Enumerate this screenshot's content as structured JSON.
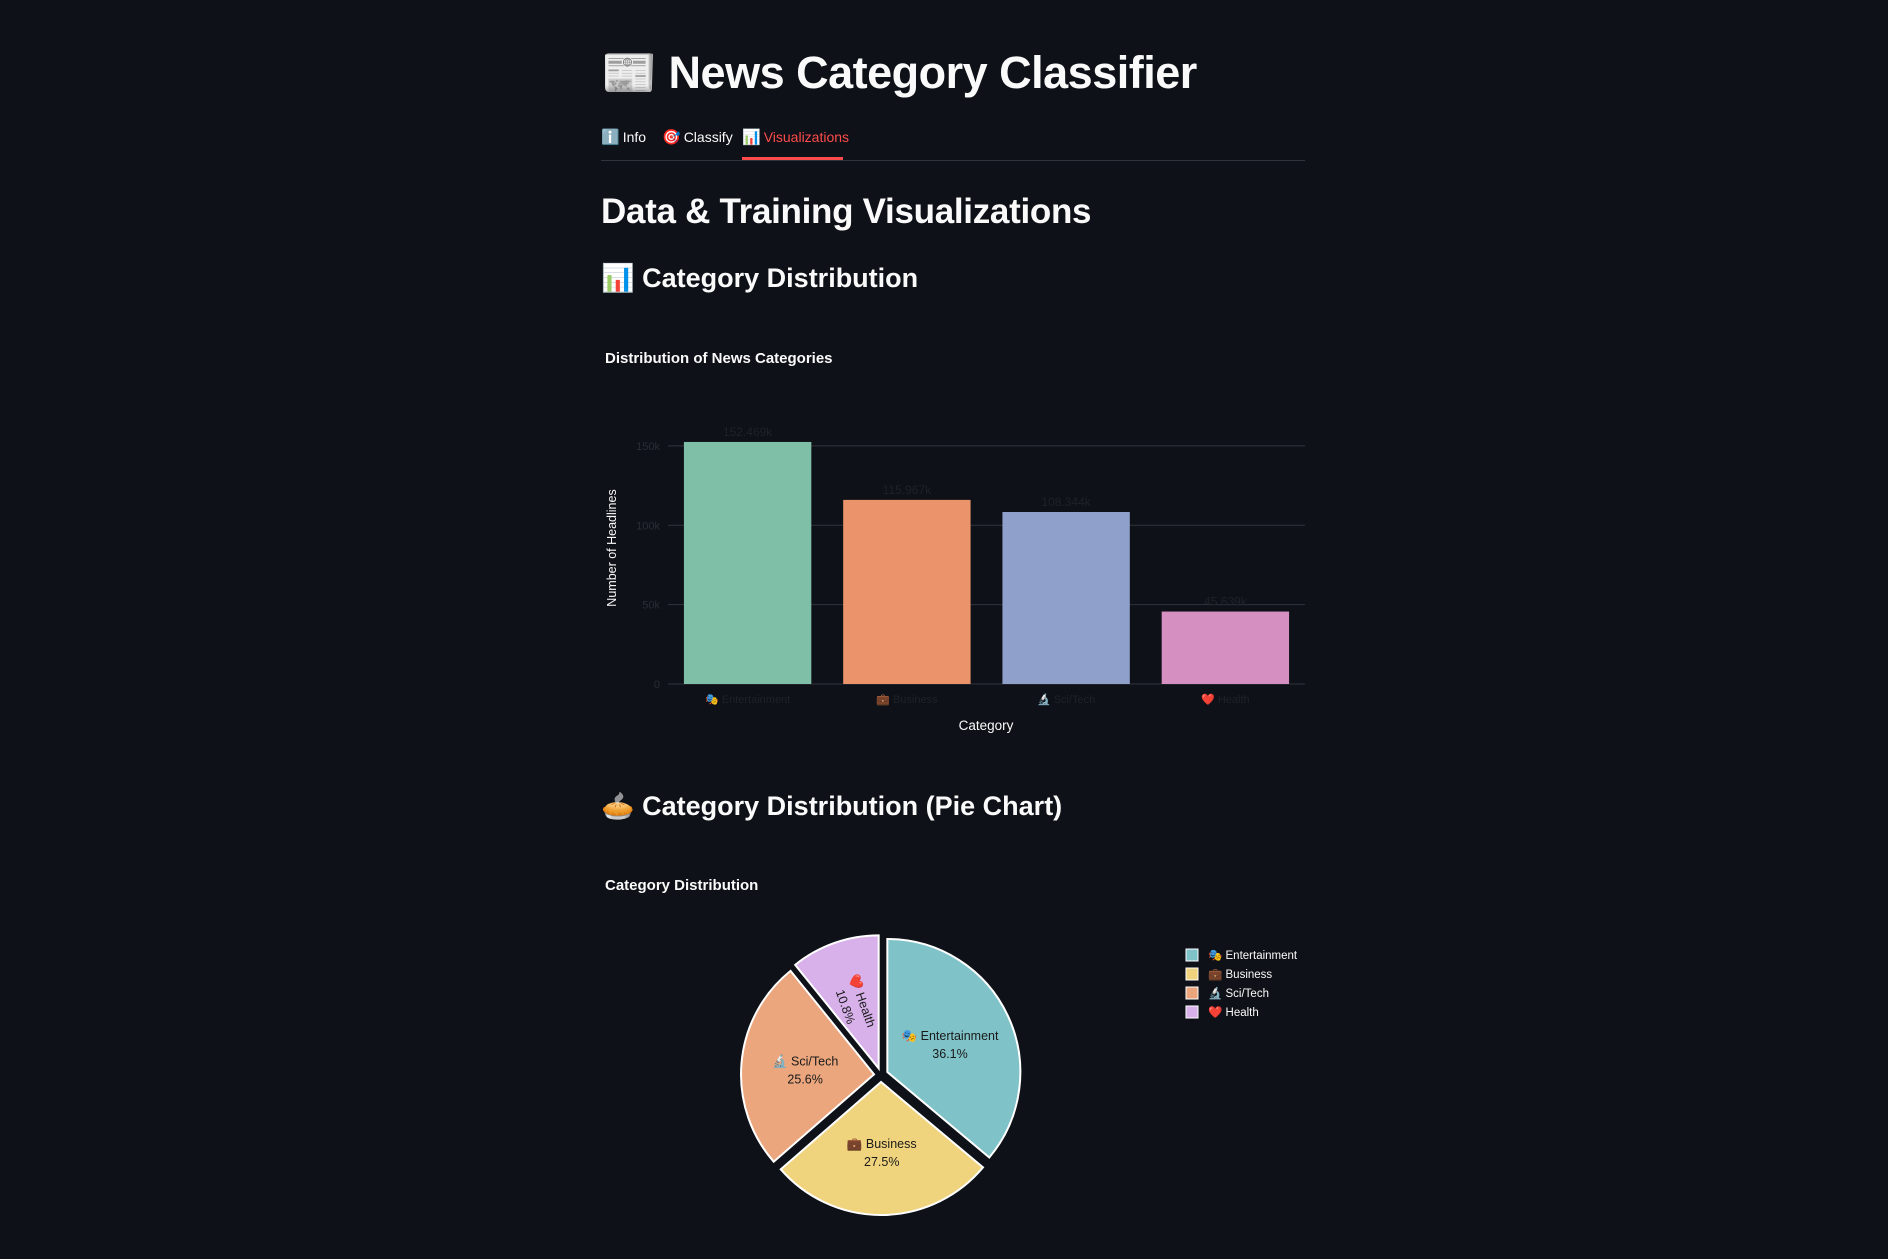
{
  "app": {
    "title": "News Category Classifier",
    "title_icon": "📰"
  },
  "tabs": [
    {
      "icon": "ℹ️",
      "label": "Info",
      "active": false
    },
    {
      "icon": "🎯",
      "label": "Classify",
      "active": false
    },
    {
      "icon": "📊",
      "label": "Visualizations",
      "active": true
    }
  ],
  "main": {
    "heading": "Data & Training Visualizations",
    "bar_section": {
      "icon": "📊",
      "title": "Category Distribution"
    },
    "pie_section": {
      "icon": "🥧",
      "title": "Category Distribution (Pie Chart)"
    }
  },
  "colors": {
    "background": "#0e1117",
    "accent": "#ff4b4b",
    "bar_colors": [
      "#7fbfa8",
      "#eb936b",
      "#8fa1ca",
      "#d68fc1"
    ],
    "pie_colors": [
      "#7fc2c8",
      "#f0d37d",
      "#eba67d",
      "#d8b1ea"
    ]
  },
  "chart_data": [
    {
      "type": "bar",
      "title": "Distribution of News Categories",
      "xlabel": "Category",
      "ylabel": "Number of Headlines",
      "categories": [
        "🎭 Entertainment",
        "💼 Business",
        "🔬 Sci/Tech",
        "❤️ Health"
      ],
      "values": [
        152469,
        115967,
        108344,
        45639
      ],
      "value_labels": [
        "152.469k",
        "115.967k",
        "108.344k",
        "45.639k"
      ],
      "yticks": [
        0,
        50000,
        100000,
        150000
      ],
      "ytick_labels": [
        "0",
        "50k",
        "100k",
        "150k"
      ],
      "ylim": [
        0,
        160000
      ],
      "grid": true
    },
    {
      "type": "pie",
      "title": "Category Distribution",
      "labels": [
        "🎭 Entertainment",
        "💼 Business",
        "🔬 Sci/Tech",
        "❤️ Health"
      ],
      "values": [
        36.1,
        27.5,
        25.6,
        10.8
      ],
      "value_labels": [
        "36.1%",
        "27.5%",
        "25.6%",
        "10.8%"
      ],
      "legend": [
        "🎭 Entertainment",
        "💼 Business",
        "🔬 Sci/Tech",
        "❤️ Health"
      ],
      "legend_position": "top-right"
    }
  ]
}
